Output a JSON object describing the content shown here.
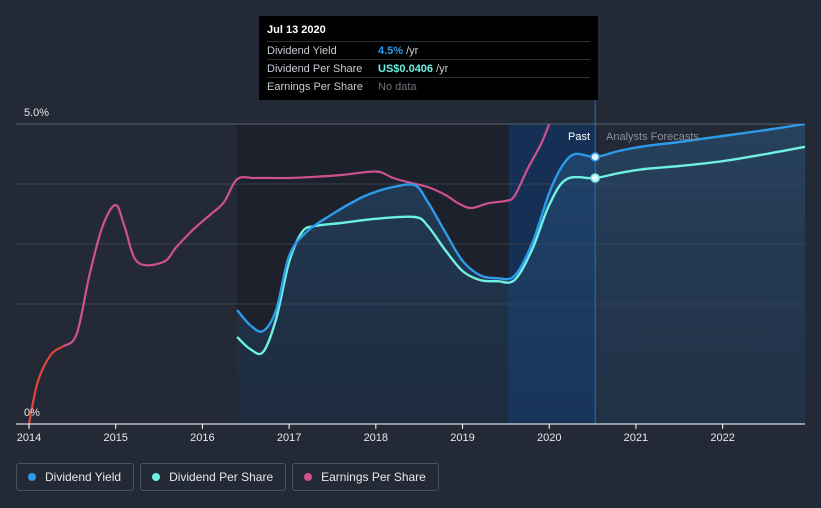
{
  "tooltip": {
    "date": "Jul 13 2020",
    "rows": [
      {
        "name": "Dividend Yield",
        "value": "4.5%",
        "unit": "/yr"
      },
      {
        "name": "Dividend Per Share",
        "value": "US$0.0406",
        "unit": "/yr"
      },
      {
        "name": "Earnings Per Share",
        "value": "No data",
        "unit": ""
      }
    ]
  },
  "regions": {
    "past": "Past",
    "forecast": "Analysts Forecasts"
  },
  "legend": [
    {
      "label": "Dividend Yield",
      "color": "#2e9bea"
    },
    {
      "label": "Dividend Per Share",
      "color": "#6ff0e0"
    },
    {
      "label": "Earnings Per Share",
      "color": "#d0518f"
    }
  ],
  "chart_data": {
    "type": "line",
    "y_tick_labels": [
      "5.0%",
      "0%"
    ],
    "ylim": [
      0,
      5.0
    ],
    "xlim": [
      2013.85,
      2022.95
    ],
    "x_tick_labels": [
      "2014",
      "2015",
      "2016",
      "2017",
      "2018",
      "2019",
      "2020",
      "2021",
      "2022"
    ],
    "x_ticks": [
      2014,
      2015,
      2016,
      2017,
      2018,
      2019,
      2020,
      2021,
      2022
    ],
    "grid": true,
    "legend_position": "bottom-left",
    "past_end": 2020.53,
    "highlight_start": 2019.53,
    "series": [
      {
        "name": "Dividend Yield",
        "color": "#2e9bea",
        "x": [
          2016.4,
          2016.55,
          2016.7,
          2016.85,
          2017.0,
          2017.2,
          2017.5,
          2017.8,
          2018.0,
          2018.2,
          2018.45,
          2018.6,
          2018.8,
          2019.0,
          2019.2,
          2019.4,
          2019.6,
          2019.8,
          2020.0,
          2020.15,
          2020.3,
          2020.53,
          2020.8,
          2021.1,
          2021.5,
          2022.0,
          2022.5,
          2022.95
        ],
        "y": [
          1.9,
          1.65,
          1.55,
          1.9,
          2.8,
          3.2,
          3.5,
          3.75,
          3.87,
          3.95,
          3.98,
          3.7,
          3.2,
          2.72,
          2.48,
          2.43,
          2.47,
          3.0,
          3.85,
          4.3,
          4.5,
          4.45,
          4.55,
          4.63,
          4.7,
          4.8,
          4.9,
          5.0
        ]
      },
      {
        "name": "Dividend Per Share",
        "color": "#6ff0e0",
        "x": [
          2016.4,
          2016.55,
          2016.7,
          2016.85,
          2017.0,
          2017.15,
          2017.3,
          2017.6,
          2018.0,
          2018.45,
          2018.6,
          2018.8,
          2019.0,
          2019.2,
          2019.4,
          2019.6,
          2019.8,
          2020.0,
          2020.2,
          2020.53,
          2020.8,
          2021.1,
          2021.5,
          2022.0,
          2022.5,
          2022.95
        ],
        "y": [
          1.45,
          1.25,
          1.2,
          1.75,
          2.7,
          3.2,
          3.3,
          3.35,
          3.42,
          3.45,
          3.3,
          2.9,
          2.55,
          2.4,
          2.38,
          2.4,
          2.9,
          3.65,
          4.08,
          4.1,
          4.18,
          4.25,
          4.3,
          4.38,
          4.5,
          4.62
        ]
      },
      {
        "name": "Earnings Per Share",
        "color": "#d0518f",
        "x": [
          2014.0,
          2014.1,
          2014.25,
          2014.4,
          2014.55,
          2014.7,
          2014.85,
          2015.0,
          2015.1,
          2015.25,
          2015.55,
          2015.7,
          2015.9,
          2016.1,
          2016.25,
          2016.4,
          2016.6,
          2016.8,
          2017.0,
          2017.3,
          2017.6,
          2017.9,
          2018.05,
          2018.2,
          2018.4,
          2018.6,
          2018.8,
          2018.95,
          2019.1,
          2019.3,
          2019.5,
          2019.6,
          2019.75,
          2019.9,
          2020.0
        ],
        "y": [
          0.0,
          0.7,
          1.15,
          1.3,
          1.5,
          2.5,
          3.3,
          3.65,
          3.3,
          2.7,
          2.7,
          2.95,
          3.25,
          3.5,
          3.7,
          4.08,
          4.1,
          4.1,
          4.1,
          4.12,
          4.15,
          4.2,
          4.2,
          4.1,
          4.02,
          3.95,
          3.82,
          3.68,
          3.6,
          3.68,
          3.72,
          3.8,
          4.25,
          4.65,
          5.0
        ]
      }
    ]
  }
}
